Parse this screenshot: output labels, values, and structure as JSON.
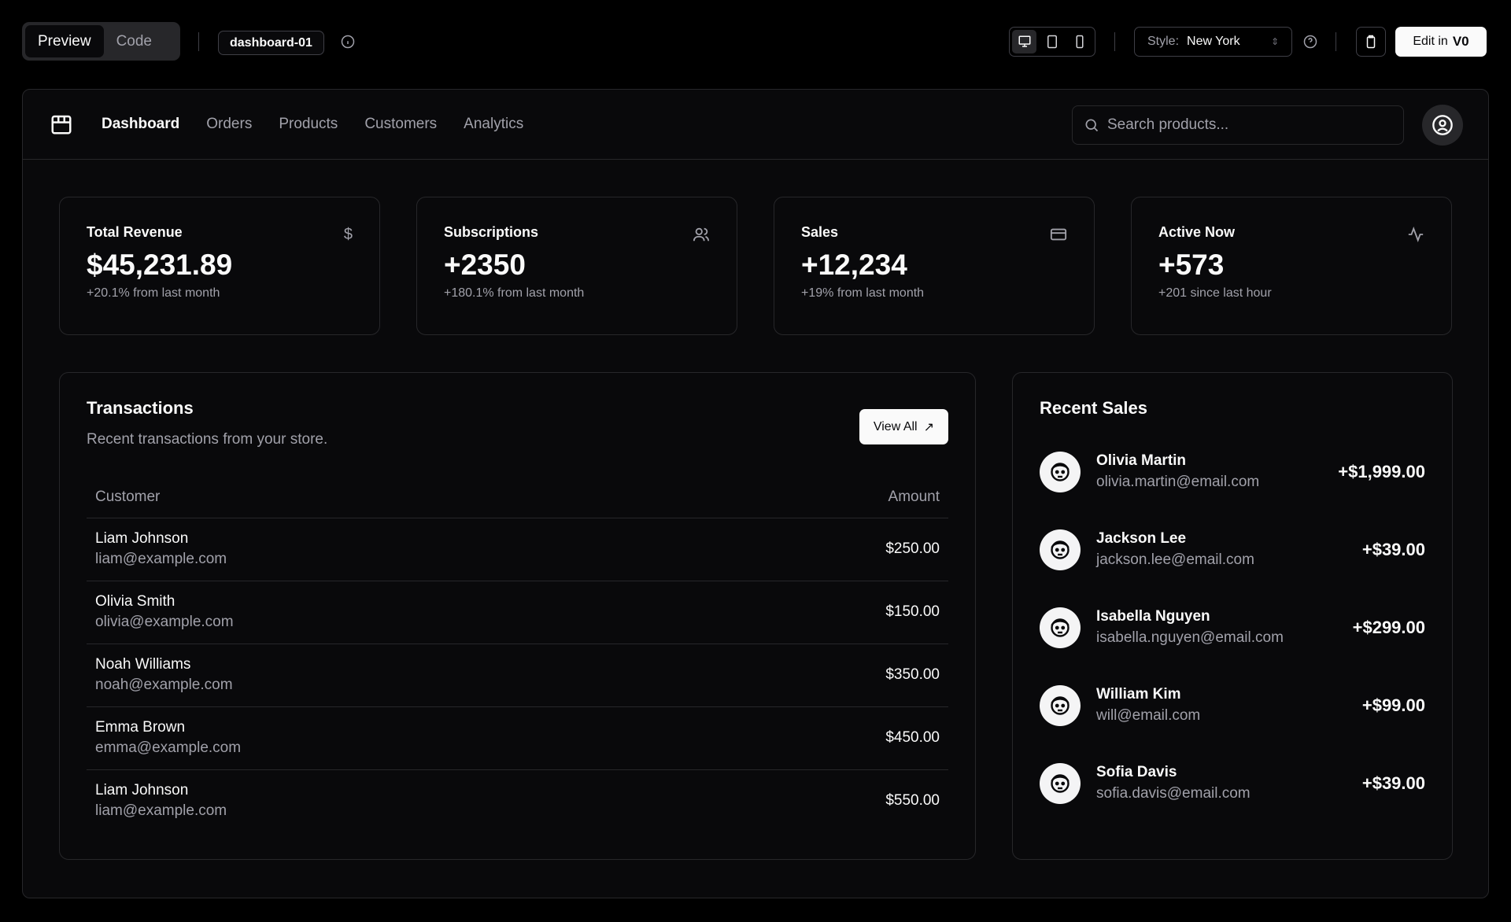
{
  "toolbar": {
    "tabs": [
      {
        "label": "Preview",
        "active": true
      },
      {
        "label": "Code",
        "active": false
      }
    ],
    "block_name": "dashboard-01",
    "style_label": "Style:",
    "style_value": "New York",
    "edit_label": "Edit in",
    "edit_brand": "v0"
  },
  "nav": {
    "items": [
      "Dashboard",
      "Orders",
      "Products",
      "Customers",
      "Analytics"
    ],
    "active": "Dashboard",
    "search_placeholder": "Search products..."
  },
  "stats": [
    {
      "title": "Total Revenue",
      "value": "$45,231.89",
      "sub": "+20.1% from last month",
      "icon": "dollar-icon"
    },
    {
      "title": "Subscriptions",
      "value": "+2350",
      "sub": "+180.1% from last month",
      "icon": "users-icon"
    },
    {
      "title": "Sales",
      "value": "+12,234",
      "sub": "+19% from last month",
      "icon": "credit-card-icon"
    },
    {
      "title": "Active Now",
      "value": "+573",
      "sub": "+201 since last hour",
      "icon": "activity-icon"
    }
  ],
  "transactions": {
    "title": "Transactions",
    "subtitle": "Recent transactions from your store.",
    "view_all": "View All",
    "columns": [
      "Customer",
      "Amount"
    ],
    "rows": [
      {
        "name": "Liam Johnson",
        "email": "liam@example.com",
        "amount": "$250.00"
      },
      {
        "name": "Olivia Smith",
        "email": "olivia@example.com",
        "amount": "$150.00"
      },
      {
        "name": "Noah Williams",
        "email": "noah@example.com",
        "amount": "$350.00"
      },
      {
        "name": "Emma Brown",
        "email": "emma@example.com",
        "amount": "$450.00"
      },
      {
        "name": "Liam Johnson",
        "email": "liam@example.com",
        "amount": "$550.00"
      }
    ]
  },
  "recent_sales": {
    "title": "Recent Sales",
    "items": [
      {
        "name": "Olivia Martin",
        "email": "olivia.martin@email.com",
        "amount": "+$1,999.00"
      },
      {
        "name": "Jackson Lee",
        "email": "jackson.lee@email.com",
        "amount": "+$39.00"
      },
      {
        "name": "Isabella Nguyen",
        "email": "isabella.nguyen@email.com",
        "amount": "+$299.00"
      },
      {
        "name": "William Kim",
        "email": "will@email.com",
        "amount": "+$99.00"
      },
      {
        "name": "Sofia Davis",
        "email": "sofia.davis@email.com",
        "amount": "+$39.00"
      }
    ]
  }
}
